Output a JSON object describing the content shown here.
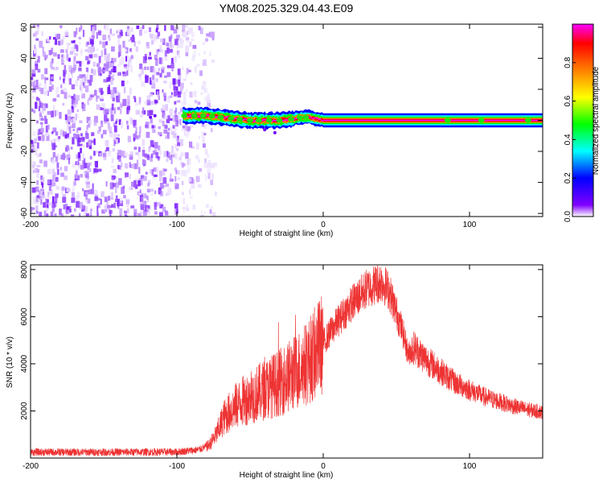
{
  "title": "YM08.2025.329.04.43.E09",
  "chart_data": [
    {
      "type": "heatmap",
      "name": "spectrogram",
      "xlabel": "Height of straight line (km)",
      "ylabel": "Frequency (Hz)",
      "xlim": [
        -200,
        150
      ],
      "ylim": [
        -62,
        62
      ],
      "x_ticks": [
        -200,
        -100,
        0,
        100
      ],
      "x_tick_labels": [
        "-200",
        "-100",
        "0",
        "100"
      ],
      "y_ticks": [
        60,
        40,
        20,
        0,
        -20,
        -40,
        -60
      ],
      "y_tick_labels": [
        "60",
        "40",
        "20",
        "0",
        "-20",
        "-40",
        "-60"
      ],
      "colorbar": {
        "label": "Normalized spectral amplitude",
        "range": [
          0,
          1
        ],
        "ticks": [
          0.0,
          0.2,
          0.4,
          0.6,
          0.8
        ],
        "tick_labels": [
          "0.0",
          "0.2",
          "0.4",
          "0.6",
          "0.8"
        ],
        "colors": [
          "#ffffff",
          "#8000ff",
          "#0000ff",
          "#00ffff",
          "#00ff00",
          "#ffff00",
          "#ff8000",
          "#ff0000",
          "#ff00ff"
        ]
      },
      "noise_region_x": [
        -200,
        -74
      ],
      "signal_band": {
        "x_start": -96,
        "x_end": 150,
        "frequency_hz": [
          [
            -96,
            3
          ],
          [
            -80,
            3
          ],
          [
            -70,
            2
          ],
          [
            -60,
            1
          ],
          [
            -50,
            0
          ],
          [
            -40,
            0
          ],
          [
            -30,
            0
          ],
          [
            -20,
            1
          ],
          [
            -15,
            2
          ],
          [
            -10,
            2
          ],
          [
            -5,
            1
          ],
          [
            0,
            0
          ],
          [
            50,
            0
          ],
          [
            100,
            0
          ],
          [
            150,
            0
          ]
        ]
      }
    },
    {
      "type": "line",
      "name": "snr",
      "xlabel": "Height of straight line (km)",
      "ylabel": "SNR (10 * v/v)",
      "xlim": [
        -200,
        150
      ],
      "ylim": [
        0,
        8200
      ],
      "x_ticks": [
        -200,
        -100,
        0,
        100
      ],
      "x_tick_labels": [
        "-200",
        "-100",
        "0",
        "100"
      ],
      "y_ticks": [
        2000,
        4000,
        6000,
        8000
      ],
      "y_tick_labels": [
        "2000",
        "4000",
        "6000",
        "8000"
      ],
      "color": "#ee3333",
      "envelope": [
        [
          -200,
          250
        ],
        [
          -150,
          250
        ],
        [
          -100,
          260
        ],
        [
          -85,
          350
        ],
        [
          -78,
          550
        ],
        [
          -73,
          1000
        ],
        [
          -68,
          1700
        ],
        [
          -60,
          2200
        ],
        [
          -50,
          2600
        ],
        [
          -40,
          2900
        ],
        [
          -30,
          3200
        ],
        [
          -20,
          3600
        ],
        [
          -10,
          4100
        ],
        [
          0,
          4900
        ],
        [
          10,
          5800
        ],
        [
          20,
          6600
        ],
        [
          30,
          7200
        ],
        [
          40,
          7500
        ],
        [
          45,
          7100
        ],
        [
          50,
          6200
        ],
        [
          55,
          5200
        ],
        [
          58,
          4400
        ],
        [
          62,
          4700
        ],
        [
          70,
          4200
        ],
        [
          80,
          3700
        ],
        [
          90,
          3200
        ],
        [
          100,
          2900
        ],
        [
          110,
          2600
        ],
        [
          120,
          2400
        ],
        [
          130,
          2200
        ],
        [
          140,
          2050
        ],
        [
          150,
          1950
        ]
      ]
    }
  ]
}
